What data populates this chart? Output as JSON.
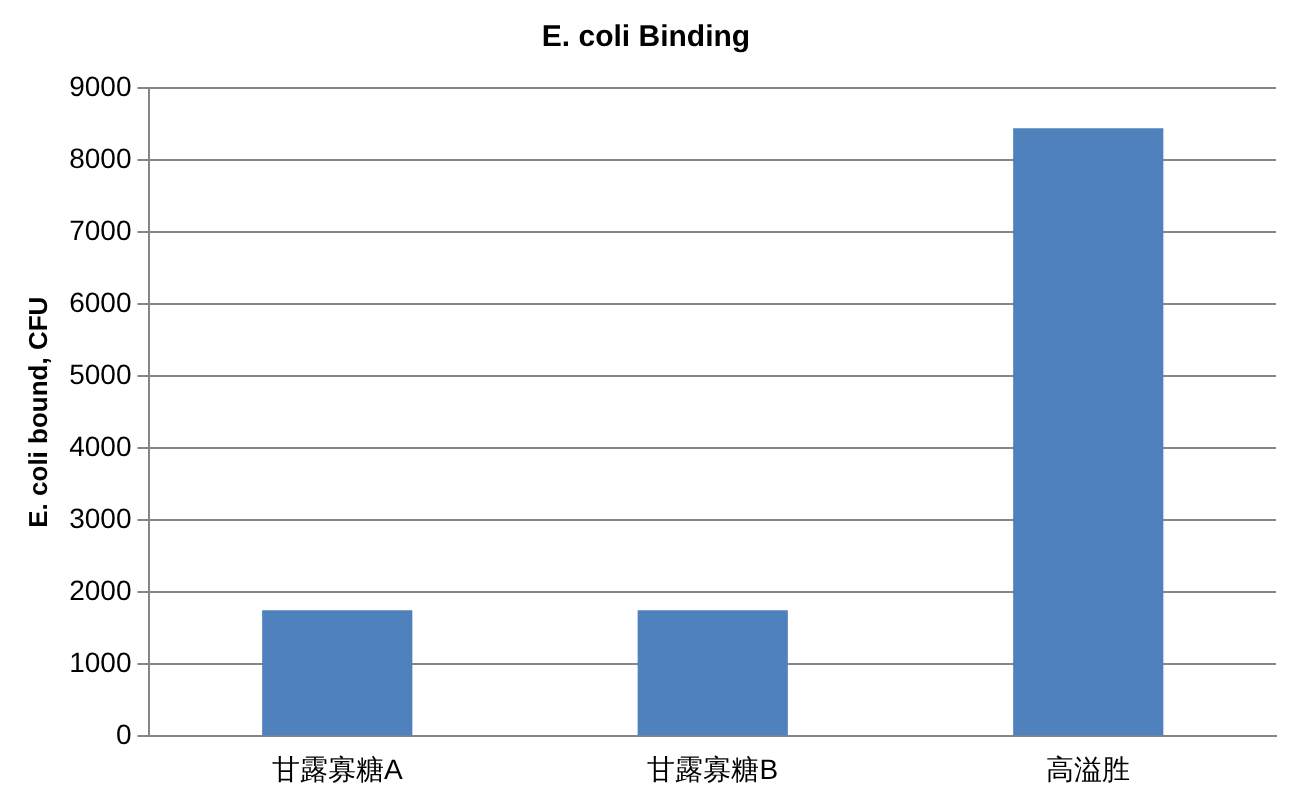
{
  "chart_data": {
    "type": "bar",
    "title": "E. coli Binding",
    "ylabel": "E. coli bound, CFU",
    "categories": [
      "甘露寡糖A",
      "甘露寡糖B",
      "高溢胜"
    ],
    "values": [
      1750,
      1750,
      8440
    ],
    "color": "#4f81bd",
    "ylim": [
      0,
      9000
    ],
    "yticks": [
      0,
      1000,
      2000,
      3000,
      4000,
      5000,
      6000,
      7000,
      8000,
      9000
    ],
    "grid": "y",
    "legend": false
  }
}
